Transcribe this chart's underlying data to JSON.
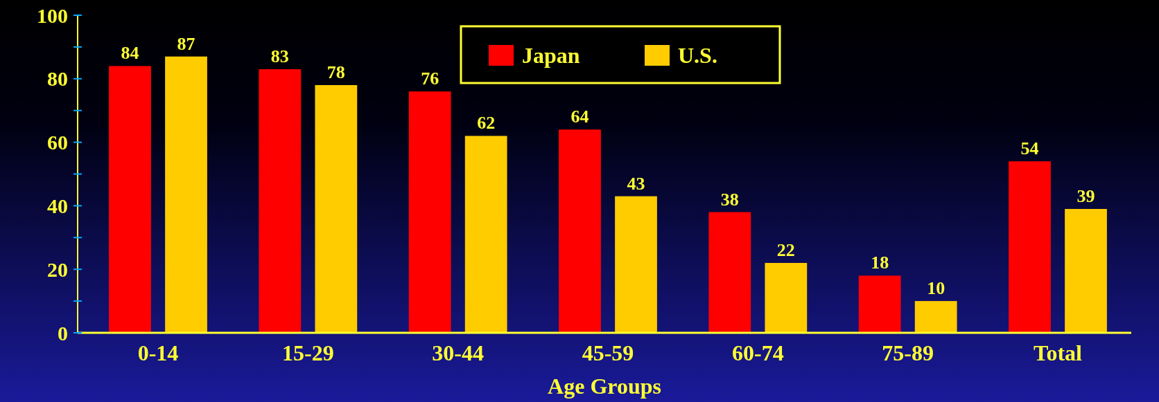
{
  "chart_data": {
    "type": "bar",
    "xlabel": "Age Groups",
    "categories": [
      "0-14",
      "15-29",
      "30-44",
      "45-59",
      "60-74",
      "75-89",
      "Total"
    ],
    "series": [
      {
        "name": "Japan",
        "color": "#ff0000",
        "values": [
          84,
          83,
          76,
          64,
          38,
          18,
          54
        ]
      },
      {
        "name": "U.S.",
        "color": "#ffcc00",
        "values": [
          87,
          78,
          62,
          43,
          22,
          10,
          39
        ]
      }
    ],
    "ylim": [
      0,
      100
    ],
    "yticks": [
      0,
      {
        "value": 10,
        "label": null
      },
      20,
      {
        "value": 30,
        "label": null
      },
      40,
      {
        "value": 50,
        "label": null
      },
      60,
      {
        "value": 70,
        "label": null
      },
      80,
      {
        "value": 90,
        "label": null
      },
      100
    ],
    "data_labels": true,
    "legend": "top",
    "grid": false
  }
}
